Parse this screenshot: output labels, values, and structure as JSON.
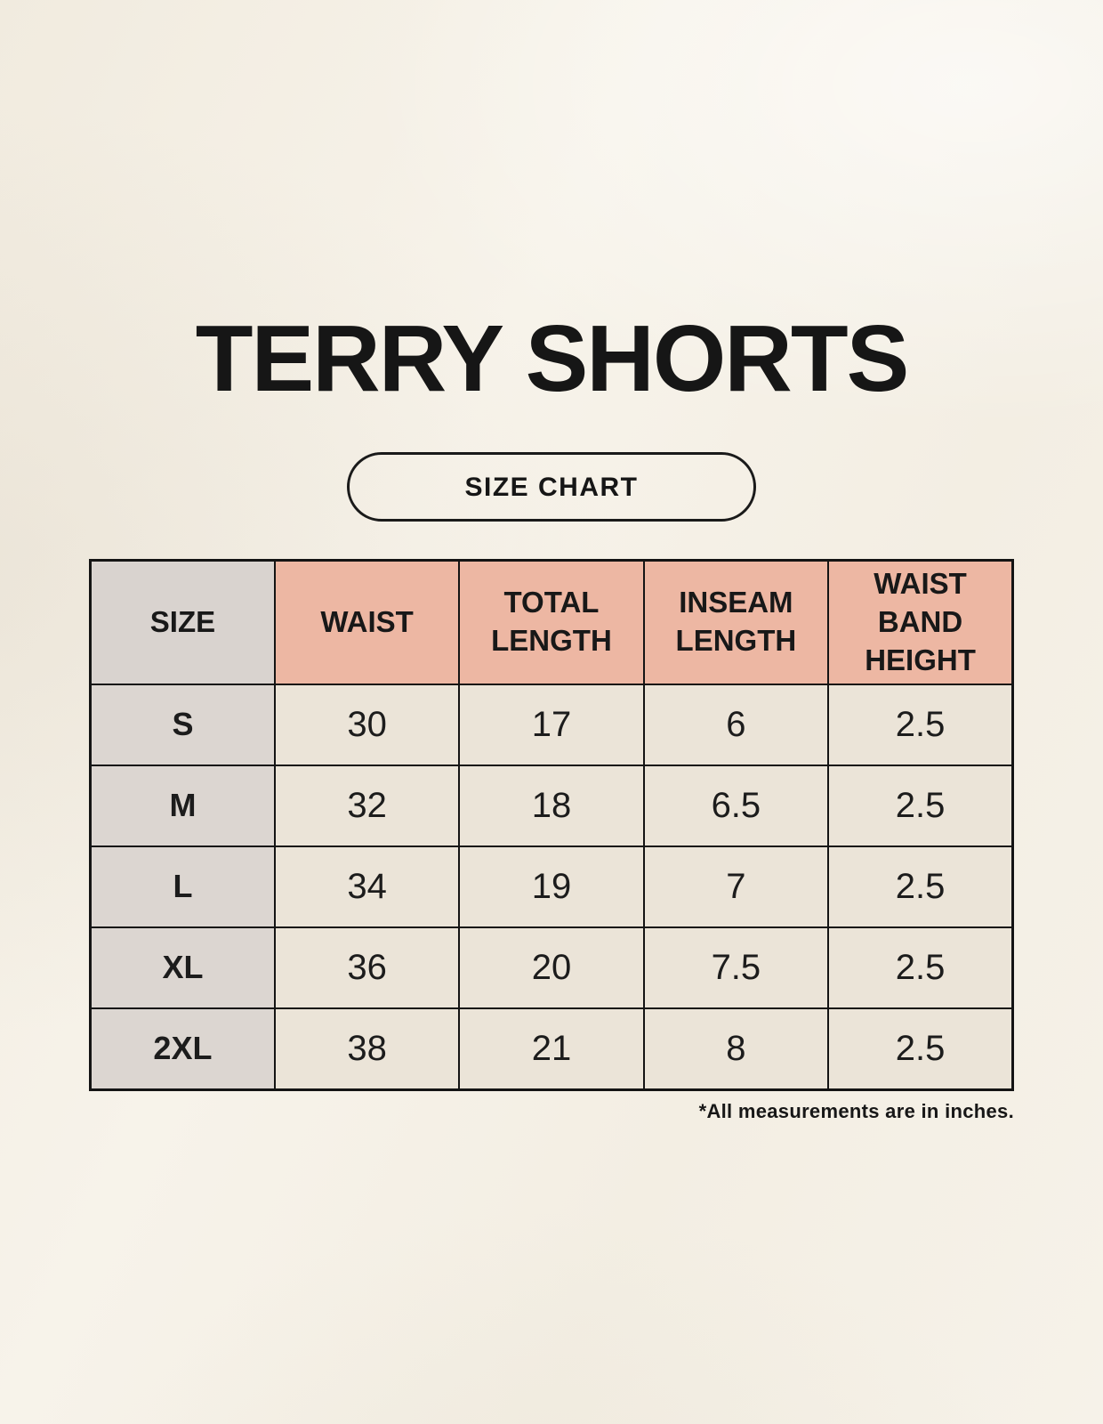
{
  "page": {
    "title": "TERRY SHORTS",
    "button_label": "SIZE CHART",
    "footnote": "*All measurements are in inches."
  },
  "colors": {
    "background": "#f4efe5",
    "header_pink": "#edb7a3",
    "header_gray": "#d9d3cf",
    "row_label_gray": "#dcd6d1",
    "cell_cream": "#ebe4d8",
    "border_black": "#141414"
  },
  "chart_data": {
    "type": "table",
    "title": "TERRY SHORTS",
    "columns": [
      "SIZE",
      "WAIST",
      "TOTAL LENGTH",
      "INSEAM LENGTH",
      "WAIST BAND HEIGHT"
    ],
    "rows": [
      [
        "S",
        "30",
        "17",
        "6",
        "2.5"
      ],
      [
        "M",
        "32",
        "18",
        "6.5",
        "2.5"
      ],
      [
        "L",
        "34",
        "19",
        "7",
        "2.5"
      ],
      [
        "XL",
        "36",
        "20",
        "7.5",
        "2.5"
      ],
      [
        "2XL",
        "38",
        "21",
        "8",
        "2.5"
      ]
    ],
    "footnote": "*All measurements are in inches.",
    "units": "inches"
  }
}
